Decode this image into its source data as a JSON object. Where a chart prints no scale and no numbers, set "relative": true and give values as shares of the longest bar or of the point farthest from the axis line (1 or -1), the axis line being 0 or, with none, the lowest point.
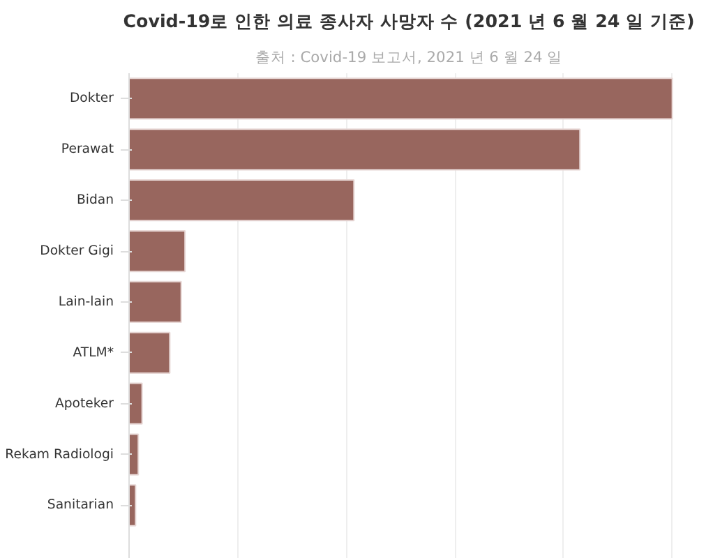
{
  "chart_data": {
    "type": "bar",
    "orientation": "horizontal",
    "relative": true,
    "grid": "x",
    "title": "Covid-19로 인한 의료 종사자 사망자 수 (2021 년 6 월 24 일 기준)",
    "subtitle": "출처 : Covid-19 보고서, 2021 년 6 월 24 일",
    "categories": [
      "Dokter",
      "Perawat",
      "Bidan",
      "Dokter Gigi",
      "Lain-lain",
      "ATLM*",
      "Apoteker",
      "Rekam Radiologi",
      "Sanitarian"
    ],
    "values": [
      1,
      0.83,
      0.414,
      0.103,
      0.096,
      0.075,
      0.024,
      0.017,
      0.012
    ],
    "color": "#98665e"
  }
}
